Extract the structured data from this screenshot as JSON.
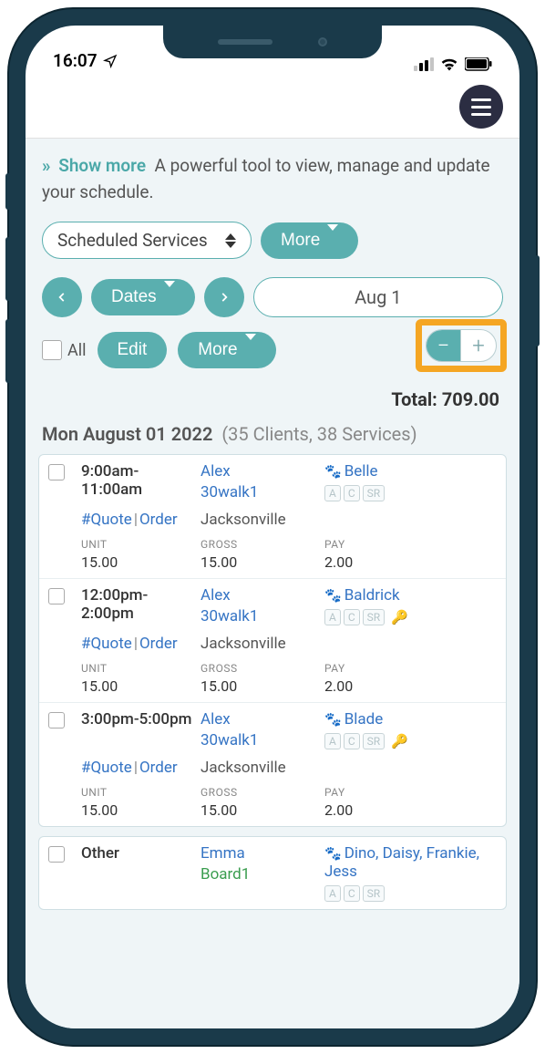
{
  "status": {
    "time": "16:07"
  },
  "intro": {
    "show_more": "Show more",
    "desc": "A powerful tool to view, manage and update your schedule."
  },
  "filter": {
    "selected": "Scheduled Services",
    "more": "More"
  },
  "nav": {
    "dates_btn": "Dates",
    "current_date": "Aug 1"
  },
  "edit": {
    "all_label": "All",
    "edit_btn": "Edit",
    "more_btn": "More"
  },
  "total": {
    "label": "Total:",
    "value": "709.00"
  },
  "date_header": {
    "date": "Mon August 01 2022",
    "count": "(35 Clients, 38 Services)"
  },
  "labels": {
    "unit": "UNIT",
    "gross": "GROSS",
    "pay": "PAY",
    "quote": "#Quote",
    "order": "Order"
  },
  "badges": [
    "A",
    "C",
    "SR"
  ],
  "cards": [
    {
      "rows": [
        {
          "time": "9:00am-11:00am",
          "staff": "Alex",
          "service": "30walk1",
          "city": "Jacksonville",
          "pet": "Belle",
          "key": false,
          "unit": "15.00",
          "gross": "15.00",
          "pay": "2.00"
        },
        {
          "time": "12:00pm-2:00pm",
          "staff": "Alex",
          "service": "30walk1",
          "city": "Jacksonville",
          "pet": "Baldrick",
          "key": true,
          "unit": "15.00",
          "gross": "15.00",
          "pay": "2.00"
        },
        {
          "time": "3:00pm-5:00pm",
          "staff": "Alex",
          "service": "30walk1",
          "city": "Jacksonville",
          "pet": "Blade",
          "key": true,
          "unit": "15.00",
          "gross": "15.00",
          "pay": "2.00"
        }
      ]
    },
    {
      "rows": [
        {
          "time": "Other",
          "staff": "Emma",
          "service": "Board1",
          "service_green": true,
          "city": "",
          "pet": "Dino, Daisy, Frankie, Jess",
          "key": false,
          "unit": "",
          "gross": "",
          "pay": ""
        }
      ]
    }
  ]
}
